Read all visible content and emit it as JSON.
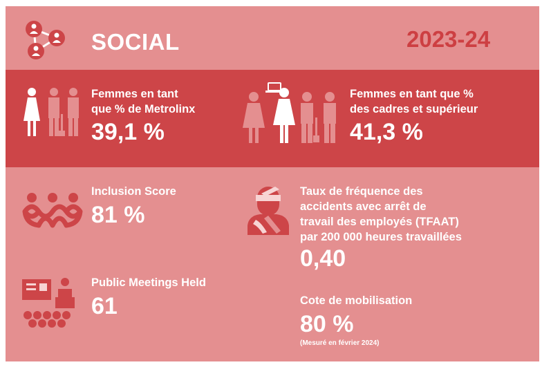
{
  "header": {
    "title": "SOCIAL",
    "period": "2023-24"
  },
  "stats": {
    "women_pct": {
      "label_line1": "Femmes en tant",
      "label_line2": "que % de Metrolinx",
      "value": "39,1 %"
    },
    "women_managers": {
      "label_line1": "Femmes en tant que %",
      "label_line2": "des cadres et supérieur",
      "value": "41,3 %"
    },
    "inclusion": {
      "label": "Inclusion Score",
      "value": "81 %"
    },
    "lost_time": {
      "label_line1": "Taux de fréquence des",
      "label_line2": "accidents avec arrêt de",
      "label_line3": "travail des employés (TFAAT)",
      "label_line4": "par 200 000 heures travaillées",
      "value": "0,40"
    },
    "meetings": {
      "label": "Public Meetings Held",
      "value": "61"
    },
    "engagement": {
      "label": "Cote de mobilisation",
      "value": "80 %",
      "note": "(Mesuré en février 2024)"
    }
  },
  "icons": {
    "network": "people-network-icon",
    "workers": "workforce-icon",
    "managers": "managers-icon",
    "inclusion": "inclusion-people-icon",
    "injury": "injured-worker-icon",
    "meeting": "public-meeting-icon"
  },
  "colors": {
    "panel": "#e48f90",
    "band": "#cd4548",
    "accent": "#cd3f42",
    "text": "#ffffff"
  }
}
